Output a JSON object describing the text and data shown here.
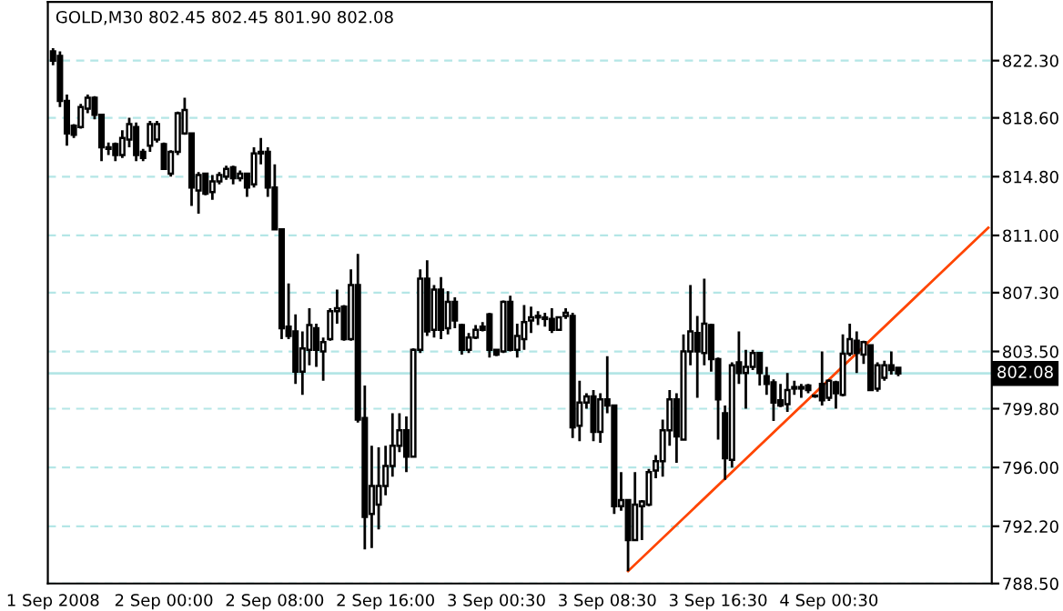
{
  "chart_data": {
    "type": "candlestick",
    "title": "GOLD,M30 802.45 802.45 801.90 802.08",
    "categories": [
      "1 Sep 2008",
      null,
      null,
      null,
      null,
      null,
      null,
      null,
      null,
      null,
      null,
      null,
      null,
      null,
      null,
      null,
      "2 Sep 00:00",
      null,
      null,
      null,
      null,
      null,
      null,
      null,
      null,
      null,
      null,
      null,
      null,
      null,
      null,
      null,
      "2 Sep 08:00",
      null,
      null,
      null,
      null,
      null,
      null,
      null,
      null,
      null,
      null,
      null,
      null,
      null,
      null,
      null,
      "2 Sep 16:00",
      null,
      null,
      null,
      null,
      null,
      null,
      null,
      null,
      null,
      null,
      null,
      null,
      null,
      null,
      null,
      "3 Sep 00:30",
      null,
      null,
      null,
      null,
      null,
      null,
      null,
      null,
      null,
      null,
      null,
      null,
      null,
      null,
      null,
      "3 Sep 08:30",
      null,
      null,
      null,
      null,
      null,
      null,
      null,
      null,
      null,
      null,
      null,
      null,
      null,
      null,
      null,
      "3 Sep 16:30",
      null,
      null,
      null,
      null,
      null,
      null,
      null,
      null,
      null,
      null,
      null,
      null,
      null,
      null,
      null,
      "4 Sep 00:30",
      null,
      null,
      null,
      null,
      null,
      null,
      null,
      null,
      null,
      null,
      null,
      null,
      null,
      null,
      null,
      null,
      null,
      null,
      null,
      null,
      null,
      null,
      null
    ],
    "ohlc": [
      [
        822.9,
        823.1,
        822.0,
        822.3
      ],
      [
        822.6,
        822.9,
        819.3,
        819.7
      ],
      [
        819.7,
        820.1,
        816.8,
        817.6
      ],
      [
        818.1,
        818.2,
        817.3,
        817.5
      ],
      [
        818.0,
        819.5,
        817.9,
        819.3
      ],
      [
        819.2,
        820.1,
        818.9,
        819.9
      ],
      [
        819.9,
        820.0,
        818.5,
        818.8
      ],
      [
        818.8,
        818.8,
        815.8,
        816.7
      ],
      [
        816.7,
        817.0,
        816.2,
        816.6
      ],
      [
        816.9,
        817.0,
        815.8,
        816.2
      ],
      [
        816.2,
        817.8,
        816.0,
        817.3
      ],
      [
        817.2,
        818.6,
        816.7,
        818.2
      ],
      [
        818.0,
        818.3,
        815.8,
        816.2
      ],
      [
        816.4,
        816.6,
        815.8,
        816.0
      ],
      [
        816.8,
        818.4,
        816.4,
        818.2
      ],
      [
        817.2,
        818.4,
        817.0,
        818.2
      ],
      [
        816.9,
        817.0,
        815.3,
        815.3
      ],
      [
        815.0,
        816.5,
        814.8,
        816.4
      ],
      [
        816.4,
        819.0,
        816.2,
        818.9
      ],
      [
        817.6,
        819.9,
        817.5,
        819.1
      ],
      [
        817.6,
        817.6,
        812.9,
        814.1
      ],
      [
        813.9,
        815.1,
        812.4,
        814.9
      ],
      [
        815.0,
        815.0,
        813.6,
        813.7
      ],
      [
        813.8,
        814.9,
        813.3,
        814.5
      ],
      [
        814.5,
        815.1,
        814.3,
        814.9
      ],
      [
        814.8,
        815.5,
        814.6,
        815.3
      ],
      [
        815.4,
        815.5,
        814.3,
        814.7
      ],
      [
        814.7,
        815.2,
        814.5,
        815.0
      ],
      [
        815.0,
        815.0,
        813.5,
        814.1
      ],
      [
        814.3,
        816.7,
        814.1,
        816.3
      ],
      [
        816.4,
        817.3,
        815.6,
        816.3
      ],
      [
        816.4,
        816.7,
        813.5,
        814.1
      ],
      [
        814.1,
        815.6,
        811.4,
        811.4
      ],
      [
        811.4,
        811.4,
        804.3,
        805.0
      ],
      [
        805.1,
        807.9,
        804.3,
        804.5
      ],
      [
        804.8,
        805.9,
        801.4,
        802.2
      ],
      [
        802.2,
        804.8,
        800.7,
        803.7
      ],
      [
        803.6,
        806.3,
        802.6,
        805.2
      ],
      [
        805.0,
        805.3,
        802.5,
        803.6
      ],
      [
        803.5,
        804.4,
        801.6,
        804.1
      ],
      [
        804.3,
        806.3,
        804.2,
        806.1
      ],
      [
        806.1,
        807.5,
        805.3,
        806.3
      ],
      [
        806.4,
        806.5,
        804.2,
        804.3
      ],
      [
        804.3,
        808.8,
        804.2,
        807.8
      ],
      [
        807.8,
        809.8,
        798.9,
        799.1
      ],
      [
        799.2,
        801.3,
        790.7,
        792.8
      ],
      [
        793.0,
        797.4,
        790.8,
        794.8
      ],
      [
        793.6,
        797.3,
        792.0,
        794.8
      ],
      [
        794.8,
        797.4,
        794.2,
        796.1
      ],
      [
        796.1,
        799.5,
        795.4,
        797.4
      ],
      [
        797.4,
        799.5,
        797.0,
        798.4
      ],
      [
        798.4,
        799.3,
        795.7,
        796.7
      ],
      [
        796.7,
        803.7,
        796.7,
        803.6
      ],
      [
        803.6,
        808.8,
        803.4,
        808.2
      ],
      [
        808.2,
        809.4,
        804.5,
        804.8
      ],
      [
        804.9,
        807.8,
        804.4,
        807.5
      ],
      [
        807.5,
        808.3,
        804.3,
        804.9
      ],
      [
        805.0,
        807.4,
        804.6,
        806.7
      ],
      [
        806.7,
        807.0,
        805.0,
        805.5
      ],
      [
        805.2,
        805.3,
        803.3,
        803.6
      ],
      [
        803.6,
        804.7,
        803.4,
        804.4
      ],
      [
        804.4,
        805.2,
        804.3,
        804.9
      ],
      [
        805.1,
        805.4,
        804.8,
        804.9
      ],
      [
        805.9,
        806.0,
        803.1,
        803.6
      ],
      [
        803.6,
        803.6,
        803.2,
        803.3
      ],
      [
        803.5,
        806.8,
        803.4,
        806.7
      ],
      [
        806.7,
        807.1,
        803.5,
        803.6
      ],
      [
        803.6,
        805.3,
        803.1,
        804.5
      ],
      [
        804.3,
        806.5,
        803.6,
        805.4
      ],
      [
        805.5,
        806.4,
        804.7,
        805.7
      ],
      [
        805.7,
        806.1,
        805.2,
        805.8
      ],
      [
        805.7,
        806.0,
        805.1,
        805.6
      ],
      [
        805.6,
        806.3,
        804.7,
        804.9
      ],
      [
        804.9,
        805.7,
        804.9,
        805.7
      ],
      [
        805.8,
        806.3,
        805.6,
        806.0
      ],
      [
        805.8,
        806.0,
        797.9,
        798.6
      ],
      [
        798.7,
        801.6,
        797.7,
        800.2
      ],
      [
        800.2,
        800.8,
        799.8,
        800.6
      ],
      [
        800.6,
        801.0,
        797.7,
        798.3
      ],
      [
        798.3,
        800.8,
        797.6,
        800.4
      ],
      [
        800.4,
        803.2,
        799.5,
        800.0
      ],
      [
        800.0,
        800.0,
        793.0,
        793.5
      ],
      [
        793.5,
        795.7,
        793.2,
        793.9
      ],
      [
        793.9,
        793.9,
        789.3,
        791.3
      ],
      [
        791.3,
        795.7,
        791.3,
        793.6
      ],
      [
        793.5,
        793.9,
        791.3,
        793.8
      ],
      [
        793.6,
        795.9,
        793.5,
        795.7
      ],
      [
        795.8,
        796.8,
        795.3,
        796.4
      ],
      [
        796.4,
        799.1,
        795.4,
        798.4
      ],
      [
        798.4,
        801.0,
        797.4,
        800.4
      ],
      [
        800.4,
        800.8,
        796.3,
        798.0
      ],
      [
        797.8,
        804.6,
        797.8,
        803.5
      ],
      [
        803.5,
        807.8,
        802.6,
        804.8
      ],
      [
        804.7,
        805.8,
        800.5,
        803.5
      ],
      [
        803.4,
        808.2,
        802.6,
        805.3
      ],
      [
        805.2,
        805.3,
        802.2,
        803.0
      ],
      [
        803.0,
        803.1,
        797.8,
        800.4
      ],
      [
        799.5,
        800.0,
        795.2,
        796.6
      ],
      [
        796.5,
        802.8,
        796.0,
        802.6
      ],
      [
        802.8,
        804.8,
        801.4,
        802.1
      ],
      [
        802.1,
        803.6,
        799.8,
        802.5
      ],
      [
        802.5,
        803.6,
        802.3,
        803.4
      ],
      [
        803.4,
        803.4,
        801.3,
        802.1
      ],
      [
        801.9,
        802.5,
        800.7,
        801.4
      ],
      [
        801.5,
        801.7,
        799.0,
        800.2
      ],
      [
        800.35,
        801.4,
        799.9,
        800.0
      ],
      [
        800.1,
        802.1,
        799.6,
        801.0
      ],
      [
        801.1,
        801.6,
        800.7,
        801.2
      ],
      [
        801.2,
        801.4,
        800.5,
        801.1
      ],
      [
        801.3,
        801.4,
        800.8,
        801.0
      ],
      [
        800.65,
        800.7,
        800.5,
        800.6
      ],
      [
        801.4,
        803.5,
        800.0,
        800.35
      ],
      [
        800.5,
        801.7,
        800.3,
        801.6
      ],
      [
        801.5,
        801.6,
        799.8,
        800.8
      ],
      [
        800.7,
        804.6,
        800.6,
        803.35
      ],
      [
        803.35,
        805.3,
        803.2,
        804.3
      ],
      [
        804.2,
        804.8,
        802.1,
        803.4
      ],
      [
        803.3,
        804.2,
        802.7,
        804.1
      ],
      [
        803.9,
        803.9,
        801.0,
        801.0
      ],
      [
        801.1,
        802.8,
        800.9,
        802.6
      ],
      [
        801.8,
        802.9,
        801.6,
        802.6
      ],
      [
        802.6,
        803.5,
        802.0,
        802.3
      ],
      [
        802.45,
        802.45,
        801.9,
        802.08
      ],
      null,
      null,
      null,
      null,
      null,
      null,
      null,
      null,
      null,
      null,
      null,
      null,
      null
    ],
    "series": [
      {
        "type": "line",
        "color": "#ff4500",
        "values": [
          null,
          null,
          null,
          null,
          null,
          null,
          null,
          null,
          null,
          null,
          null,
          null,
          null,
          null,
          null,
          null,
          null,
          null,
          null,
          null,
          null,
          null,
          null,
          null,
          null,
          null,
          null,
          null,
          null,
          null,
          null,
          null,
          null,
          null,
          null,
          null,
          null,
          null,
          null,
          null,
          null,
          null,
          null,
          null,
          null,
          null,
          null,
          null,
          null,
          null,
          null,
          null,
          null,
          null,
          null,
          null,
          null,
          null,
          null,
          null,
          null,
          null,
          null,
          null,
          null,
          null,
          null,
          null,
          null,
          null,
          null,
          null,
          null,
          null,
          null,
          null,
          null,
          null,
          null,
          null,
          null,
          null,
          null,
          789.3,
          null,
          null,
          null,
          null,
          null,
          null,
          null,
          null,
          null,
          null,
          null,
          null,
          null,
          null,
          null,
          null,
          null,
          null,
          null,
          null,
          null,
          null,
          null,
          null,
          null,
          null,
          null,
          null,
          null,
          null,
          null,
          null,
          null,
          null,
          null,
          null,
          null,
          null,
          null,
          null,
          null,
          null,
          null,
          null,
          null,
          null,
          null,
          null,
          null,
          null,
          null,
          811.5
        ]
      }
    ],
    "ylim": [
      788.5,
      826.1
    ],
    "yticks": [
      {
        "value": 788.5,
        "label": "788.50"
      },
      {
        "value": 792.2,
        "label": "792.20"
      },
      {
        "value": 796.0,
        "label": "796.00"
      },
      {
        "value": 799.8,
        "label": "799.80"
      },
      {
        "value": 803.5,
        "label": "803.50"
      },
      {
        "value": 807.3,
        "label": "807.30"
      },
      {
        "value": 811.0,
        "label": "811.00"
      },
      {
        "value": 814.8,
        "label": "814.80"
      },
      {
        "value": 818.6,
        "label": "818.60"
      },
      {
        "value": 822.3,
        "label": "822.30"
      }
    ],
    "ref_lines": [
      {
        "axis": "y",
        "value": 802.08,
        "label": "802.08",
        "color": "#b4e6e6"
      }
    ],
    "grid": true
  }
}
